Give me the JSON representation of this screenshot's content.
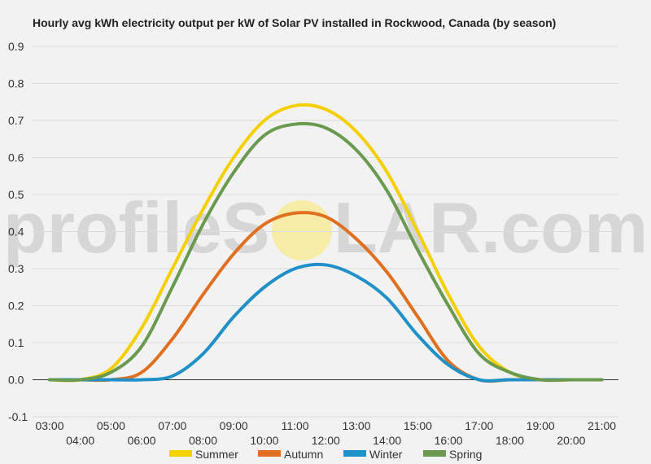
{
  "chart_data": {
    "type": "line",
    "title": "Hourly avg kWh electricity output per kW of Solar PV installed in Rockwood, Canada (by season)",
    "xlabel": "",
    "ylabel": "",
    "ylim": [
      -0.1,
      0.9
    ],
    "yticks": [
      "-0.1",
      "0.0",
      "0.1",
      "0.2",
      "0.3",
      "0.4",
      "0.5",
      "0.6",
      "0.7",
      "0.8",
      "0.9"
    ],
    "categories": [
      "03:00",
      "04:00",
      "05:00",
      "06:00",
      "07:00",
      "08:00",
      "09:00",
      "10:00",
      "11:00",
      "12:00",
      "13:00",
      "14:00",
      "15:00",
      "16:00",
      "17:00",
      "18:00",
      "19:00",
      "20:00",
      "21:00"
    ],
    "grid": true,
    "legend_position": "bottom",
    "series": [
      {
        "name": "Summer",
        "color": "#f5d000",
        "values": [
          0.0,
          0.0,
          0.03,
          0.14,
          0.3,
          0.46,
          0.6,
          0.7,
          0.74,
          0.73,
          0.67,
          0.56,
          0.4,
          0.23,
          0.09,
          0.02,
          0.0,
          0.0,
          0.0
        ]
      },
      {
        "name": "Autumn",
        "color": "#e07020",
        "values": [
          0.0,
          0.0,
          0.0,
          0.02,
          0.11,
          0.23,
          0.34,
          0.42,
          0.45,
          0.44,
          0.38,
          0.29,
          0.17,
          0.05,
          0.0,
          0.0,
          0.0,
          0.0,
          0.0
        ]
      },
      {
        "name": "Winter",
        "color": "#2090c8",
        "values": [
          0.0,
          0.0,
          0.0,
          0.0,
          0.01,
          0.07,
          0.17,
          0.25,
          0.3,
          0.31,
          0.28,
          0.22,
          0.12,
          0.04,
          0.0,
          0.0,
          0.0,
          0.0,
          0.0
        ]
      },
      {
        "name": "Spring",
        "color": "#6a9a50",
        "values": [
          0.0,
          0.0,
          0.02,
          0.09,
          0.25,
          0.42,
          0.56,
          0.66,
          0.69,
          0.68,
          0.62,
          0.51,
          0.35,
          0.2,
          0.07,
          0.02,
          0.0,
          0.0,
          0.0
        ]
      }
    ]
  },
  "watermark": {
    "text_left": "profileS",
    "text_right": "LAR.com",
    "sun_color": "#f7e98e"
  }
}
